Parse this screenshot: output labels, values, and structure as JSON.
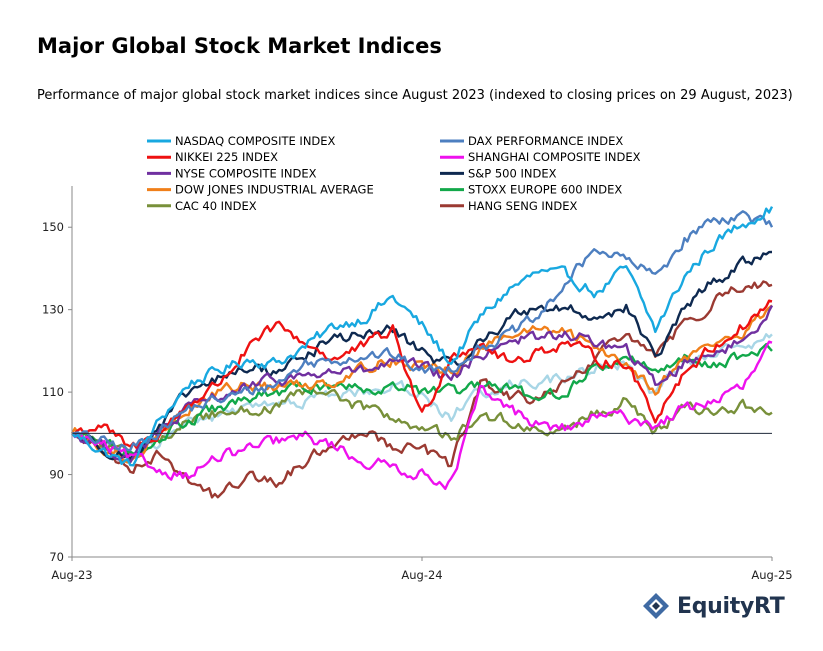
{
  "title": "Major Global Stock Market Indices",
  "subtitle": "Performance of major global stock market indices since August 2023 (indexed to closing prices on 29 August, 2023)",
  "logo": {
    "text": "EquityRT",
    "icon": "equityrt-logo-icon",
    "color": "#21344f",
    "icon_color": "#3f6aa3"
  },
  "chart_data": {
    "type": "line",
    "x_tick_labels": [
      "Aug-23",
      "Aug-24",
      "Aug-25"
    ],
    "x_range": [
      "2023-08-29",
      "2025-08-29"
    ],
    "ylim": [
      70,
      160
    ],
    "yticks": [
      70,
      90,
      110,
      130,
      150
    ],
    "reference_line": 100,
    "grid": false,
    "legend_position": "top",
    "x_months": [
      0,
      1,
      2,
      3,
      4,
      5,
      6,
      7,
      8,
      9,
      10,
      11,
      12,
      13,
      14,
      15,
      16,
      17,
      18,
      19,
      20,
      21,
      22,
      23,
      24
    ],
    "series": [
      {
        "name": "NASDAQ COMPOSITE INDEX",
        "color": "#18a8e0",
        "values": [
          100,
          96,
          92,
          103,
          112,
          115,
          118,
          117,
          121,
          126,
          128,
          133,
          126,
          117,
          128,
          135,
          139,
          138,
          134,
          140,
          125,
          138,
          146,
          151,
          155
        ]
      },
      {
        "name": "DAX PERFORMANCE INDEX",
        "color": "#4d7fc0",
        "values": [
          100,
          98,
          96,
          101,
          106,
          108,
          110,
          112,
          117,
          118,
          119,
          119,
          115,
          116,
          121,
          124,
          128,
          137,
          145,
          142,
          138,
          147,
          152,
          153,
          150
        ]
      },
      {
        "name": "NIKKEI 225 INDEX",
        "color": "#ee1111",
        "values": [
          100,
          102,
          96,
          100,
          107,
          112,
          120,
          126,
          122,
          118,
          121,
          125,
          104,
          119,
          122,
          117,
          120,
          122,
          118,
          117,
          104,
          115,
          121,
          126,
          132
        ]
      },
      {
        "name": "SHANGHAI COMPOSITE INDEX",
        "color": "#ee11ee",
        "values": [
          100,
          97,
          94,
          91,
          90,
          94,
          96,
          98,
          99,
          97,
          93,
          92,
          90,
          88,
          110,
          106,
          102,
          101,
          104,
          104,
          102,
          106,
          108,
          111,
          122
        ]
      },
      {
        "name": "NYSE COMPOSITE INDEX",
        "color": "#7030a0",
        "values": [
          100,
          97,
          94,
          100,
          106,
          109,
          111,
          113,
          114,
          115,
          115,
          117,
          116,
          113,
          119,
          123,
          123,
          124,
          122,
          120,
          112,
          117,
          120,
          122,
          131
        ]
      },
      {
        "name": "S&P 500 INDEX",
        "color": "#0e2950",
        "values": [
          100,
          97,
          94,
          101,
          110,
          113,
          116,
          115,
          119,
          123,
          124,
          125,
          120,
          116,
          122,
          128,
          131,
          130,
          128,
          131,
          118,
          130,
          137,
          141,
          144
        ]
      },
      {
        "name": "DOW JONES INDUSTRIAL AVERAGE",
        "color": "#f07f1a",
        "values": [
          100,
          96,
          94,
          100,
          106,
          110,
          112,
          111,
          112,
          113,
          116,
          118,
          116,
          115,
          120,
          124,
          125,
          124,
          121,
          117,
          111,
          118,
          122,
          124,
          131
        ]
      },
      {
        "name": "STOXX EUROPE 600 INDEX",
        "color": "#12a84a",
        "values": [
          100,
          98,
          95,
          99,
          103,
          106,
          108,
          110,
          111,
          112,
          111,
          112,
          110,
          110,
          111,
          111,
          108,
          111,
          116,
          118,
          116,
          118,
          117,
          119,
          120
        ]
      },
      {
        "name": "CAC 40 INDEX",
        "color": "#78903a",
        "values": [
          100,
          98,
          95,
          98,
          103,
          105,
          106,
          106,
          110,
          109,
          106,
          104,
          101,
          99,
          104,
          103,
          100,
          101,
          105,
          108,
          100,
          106,
          105,
          107,
          105
        ]
      },
      {
        "name": "HANG SENG INDEX",
        "color": "#9b3a32",
        "values": [
          100,
          96,
          92,
          95,
          89,
          84,
          90,
          88,
          93,
          98,
          101,
          97,
          96,
          92,
          112,
          109,
          108,
          112,
          118,
          125,
          118,
          127,
          132,
          136,
          136
        ]
      },
      {
        "name": "",
        "color": "#a8d6e6",
        "values": [
          100,
          97,
          94,
          98,
          103,
          104,
          106,
          107,
          108,
          109,
          110,
          112,
          109,
          104,
          110,
          112,
          113,
          113,
          116,
          117,
          109,
          117,
          119,
          121,
          124
        ]
      }
    ]
  }
}
